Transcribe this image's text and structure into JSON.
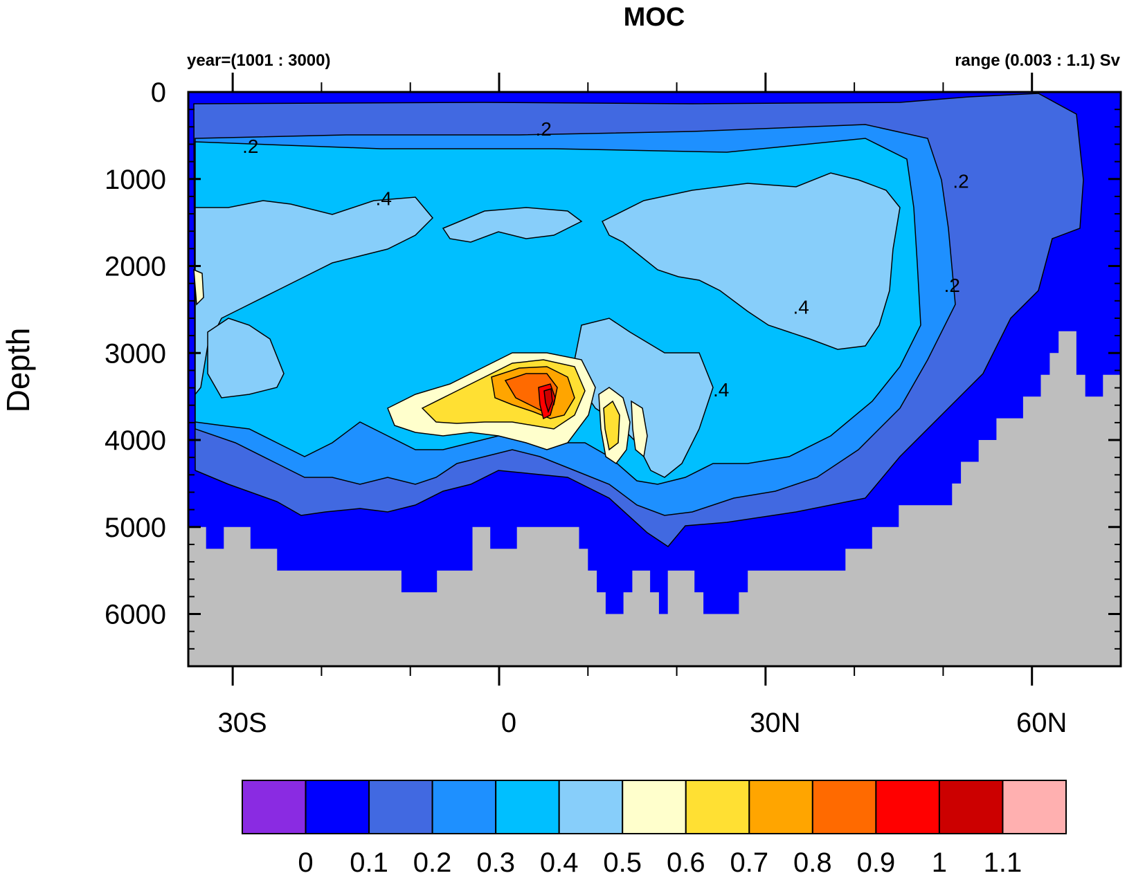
{
  "chart_data": {
    "type": "contour",
    "title": "MOC",
    "left_subtitle": "year=(1001 : 3000)",
    "right_subtitle": "range (0.003 : 1.1) Sv",
    "ylabel": "Depth",
    "xlabel": "",
    "y_axis": {
      "range": [
        0,
        6600
      ],
      "reversed": true,
      "major_ticks": [
        0,
        1000,
        2000,
        3000,
        4000,
        5000,
        6000
      ],
      "major_tick_labels": [
        "0",
        "1000",
        "2000",
        "3000",
        "4000",
        "5000",
        "6000"
      ],
      "minor_step": 200
    },
    "x_axis": {
      "range": [
        -35,
        70
      ],
      "major_ticks": [
        -30,
        0,
        30,
        60
      ],
      "major_tick_labels": [
        "30S",
        "0",
        "30N",
        "60N"
      ],
      "minor_ticks": [
        -20,
        -10,
        10,
        20,
        40,
        50
      ]
    },
    "contour_levels": [
      0,
      0.1,
      0.2,
      0.3,
      0.4,
      0.5,
      0.6,
      0.7,
      0.8,
      0.9,
      1,
      1.1
    ],
    "colorbar": {
      "labels": [
        "0",
        "0.1",
        "0.2",
        "0.3",
        "0.4",
        "0.5",
        "0.6",
        "0.7",
        "0.8",
        "0.9",
        "1",
        "1.1"
      ],
      "colors": [
        "#8a2be2",
        "#0000ff",
        "#4169e1",
        "#1e90ff",
        "#00bfff",
        "#87cefa",
        "#ffffcc",
        "#ffe033",
        "#ffa500",
        "#ff6a00",
        "#ff0000",
        "#cc0000",
        "#ffb0b0"
      ]
    },
    "contour_labels": [
      {
        "text": ".2",
        "lon": -28,
        "depth": 700
      },
      {
        "text": ".2",
        "lon": 5,
        "depth": 500
      },
      {
        "text": ".4",
        "lon": -13,
        "depth": 1300
      },
      {
        "text": ".2",
        "lon": 52,
        "depth": 1100
      },
      {
        "text": ".2",
        "lon": 51,
        "depth": 2300
      },
      {
        "text": ".4",
        "lon": 34,
        "depth": 2550
      },
      {
        "text": ".4",
        "lon": 25,
        "depth": 3500
      }
    ],
    "land_color": "#bebebe",
    "bathymetry": [
      [
        -35,
        5000
      ],
      [
        -33,
        5000
      ],
      [
        -33,
        5250
      ],
      [
        -31,
        5250
      ],
      [
        -31,
        5000
      ],
      [
        -28,
        5000
      ],
      [
        -28,
        5250
      ],
      [
        -25,
        5250
      ],
      [
        -25,
        5500
      ],
      [
        -11,
        5500
      ],
      [
        -11,
        5750
      ],
      [
        -7,
        5750
      ],
      [
        -7,
        5500
      ],
      [
        -3,
        5500
      ],
      [
        -3,
        5000
      ],
      [
        -1,
        5000
      ],
      [
        -1,
        5250
      ],
      [
        2,
        5250
      ],
      [
        2,
        5000
      ],
      [
        9,
        5000
      ],
      [
        9,
        5250
      ],
      [
        10,
        5250
      ],
      [
        10,
        5500
      ],
      [
        11,
        5500
      ],
      [
        11,
        5750
      ],
      [
        12,
        5750
      ],
      [
        12,
        6000
      ],
      [
        14,
        6000
      ],
      [
        14,
        5750
      ],
      [
        15,
        5750
      ],
      [
        15,
        5500
      ],
      [
        17,
        5500
      ],
      [
        17,
        5750
      ],
      [
        18,
        5750
      ],
      [
        18,
        6000
      ],
      [
        19,
        6000
      ],
      [
        19,
        5500
      ],
      [
        22,
        5500
      ],
      [
        22,
        5750
      ],
      [
        23,
        5750
      ],
      [
        23,
        6000
      ],
      [
        27,
        6000
      ],
      [
        27,
        5750
      ],
      [
        28,
        5750
      ],
      [
        28,
        5500
      ],
      [
        39,
        5500
      ],
      [
        39,
        5250
      ],
      [
        42,
        5250
      ],
      [
        42,
        5000
      ],
      [
        45,
        5000
      ],
      [
        45,
        4750
      ],
      [
        51,
        4750
      ],
      [
        51,
        4500
      ],
      [
        52,
        4500
      ],
      [
        52,
        4250
      ],
      [
        54,
        4250
      ],
      [
        54,
        4000
      ],
      [
        56,
        4000
      ],
      [
        56,
        3750
      ],
      [
        59,
        3750
      ],
      [
        59,
        3500
      ],
      [
        61,
        3500
      ],
      [
        61,
        3250
      ],
      [
        62,
        3250
      ],
      [
        62,
        3000
      ],
      [
        63,
        3000
      ],
      [
        63,
        2750
      ],
      [
        65,
        2750
      ],
      [
        65,
        3250
      ],
      [
        66,
        3250
      ],
      [
        66,
        3500
      ],
      [
        68,
        3500
      ],
      [
        68,
        3250
      ],
      [
        70,
        3250
      ],
      [
        70,
        6600
      ],
      [
        -35,
        6600
      ]
    ]
  }
}
